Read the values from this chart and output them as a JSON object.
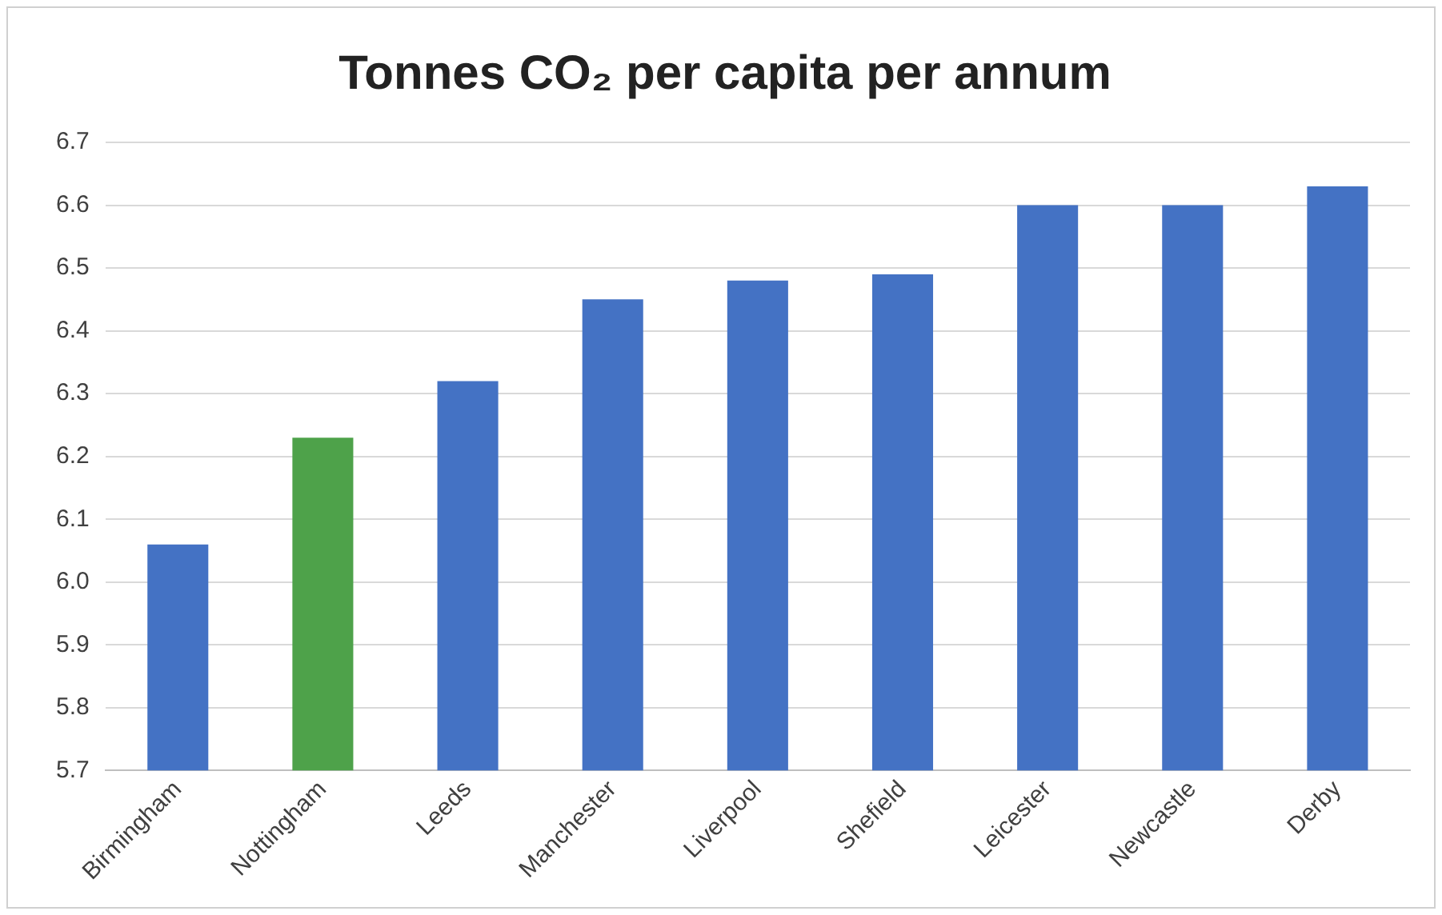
{
  "chart_data": {
    "type": "bar",
    "title": "Tonnes CO₂ per capita per annum",
    "categories": [
      "Birmingham",
      "Nottingham",
      "Leeds",
      "Manchester",
      "Liverpool",
      "Shefield",
      "Leicester",
      "Newcastle",
      "Derby"
    ],
    "values": [
      6.06,
      6.23,
      6.32,
      6.45,
      6.48,
      6.49,
      6.6,
      6.6,
      6.63
    ],
    "colors": [
      "#4472c4",
      "#4ea24a",
      "#4472c4",
      "#4472c4",
      "#4472c4",
      "#4472c4",
      "#4472c4",
      "#4472c4",
      "#4472c4"
    ],
    "ylim": [
      5.7,
      6.7
    ],
    "yticks": [
      5.7,
      5.8,
      5.9,
      {
        "value": 6,
        "label": "6.0"
      },
      6.1,
      6.2,
      6.3,
      6.4,
      6.5,
      6.6,
      6.7
    ],
    "grid": "y",
    "legend": false
  }
}
